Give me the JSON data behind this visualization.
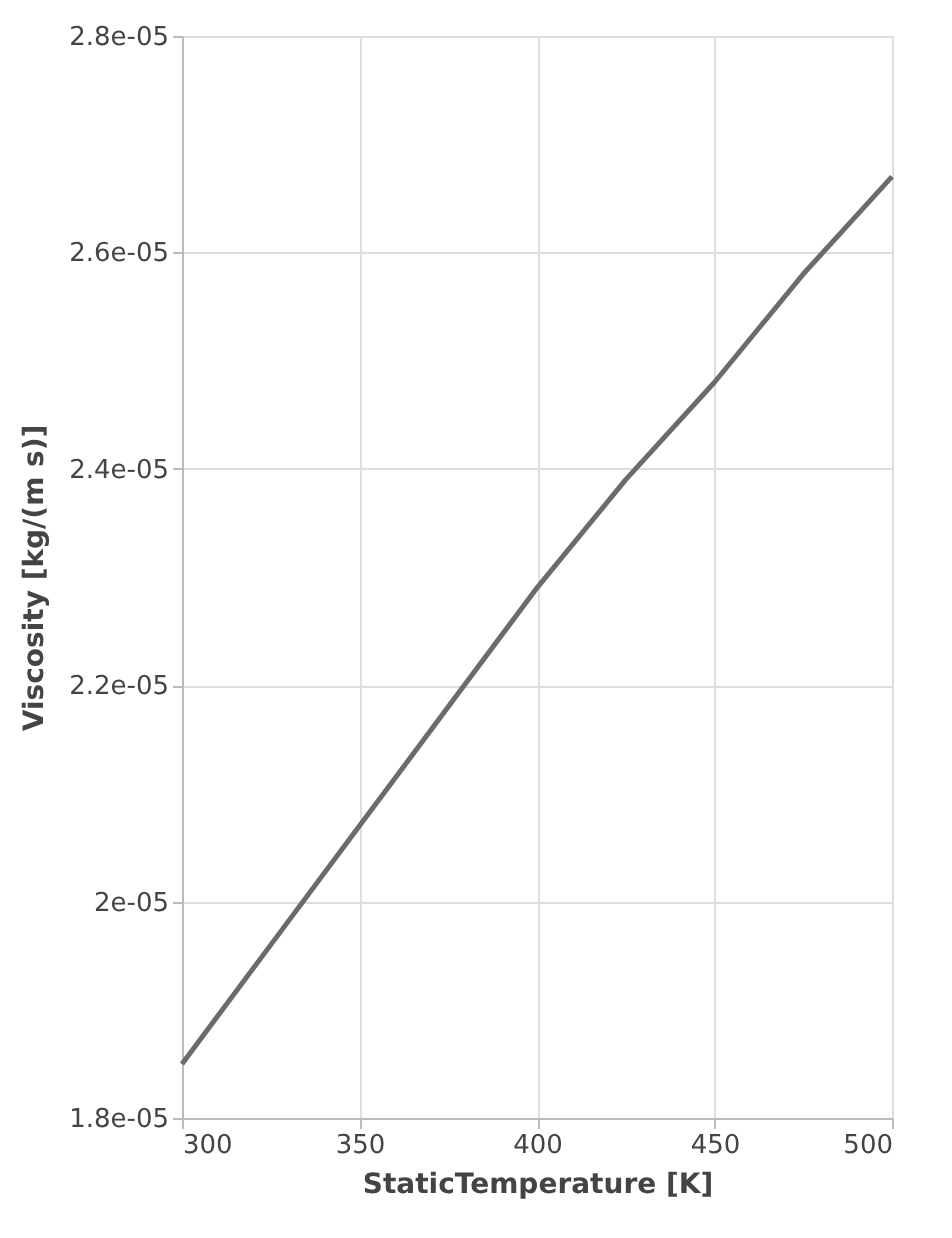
{
  "chart_data": {
    "type": "line",
    "xlabel": "StaticTemperature [K]",
    "ylabel": "Viscosity [kg/(m s)]",
    "x": [
      300,
      325,
      350,
      375,
      400,
      425,
      450,
      475,
      500
    ],
    "series": [
      {
        "color": "#6b6b6b",
        "values": [
          1.85e-05,
          1.96e-05,
          2.07e-05,
          2.18e-05,
          2.29e-05,
          2.39e-05,
          2.48e-05,
          2.58e-05,
          2.67e-05
        ]
      }
    ],
    "xlim": [
      300,
      500
    ],
    "xticks": [
      300,
      350,
      400,
      450,
      500
    ],
    "ylim": [
      1.8e-05,
      2.8e-05
    ],
    "yticks": [
      {
        "value": 1.8e-05,
        "label": "1.8e-05"
      },
      {
        "value": 2e-05,
        "label": "2e-05"
      },
      {
        "value": 2.2e-05,
        "label": "2.2e-05"
      },
      {
        "value": 2.4e-05,
        "label": "2.4e-05"
      },
      {
        "value": 2.6e-05,
        "label": "2.6e-05"
      },
      {
        "value": 2.8e-05,
        "label": "2.8e-05"
      }
    ],
    "grid": true,
    "marker": "none",
    "line_style": "solid"
  }
}
